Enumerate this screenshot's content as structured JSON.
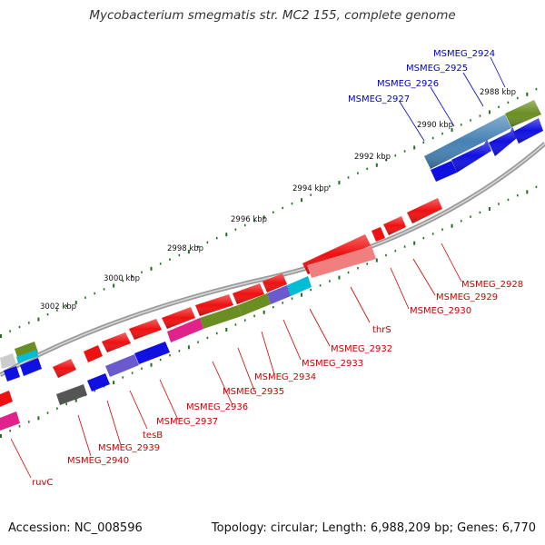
{
  "title": "Mycobacterium smegmatis str. MC2 155, complete genome",
  "footer": {
    "accession": "Accession: NC_008596",
    "stats": "Topology: circular; Length: 6,988,209 bp; Genes: 6,770"
  },
  "colors": {
    "forward_label": "#0000cc",
    "reverse_label": "#cc0000",
    "tick": "#207020",
    "backbone": "#888888"
  },
  "ruler_labels": [
    "2988 kbp",
    "2990 kbp",
    "2992 kbp",
    "2994 kbp",
    "2996 kbp",
    "2998 kbp",
    "3000 kbp",
    "3002 kbp"
  ],
  "forward_genes": [
    "MSMEG_2924",
    "MSMEG_2925",
    "MSMEG_2926",
    "MSMEG_2927"
  ],
  "reverse_genes": [
    "MSMEG_2928",
    "MSMEG_2929",
    "MSMEG_2930",
    "thrS",
    "MSMEG_2932",
    "MSMEG_2933",
    "MSMEG_2934",
    "MSMEG_2935",
    "MSMEG_2936",
    "MSMEG_2937",
    "tesB",
    "MSMEG_2939",
    "MSMEG_2940",
    "ruvC"
  ]
}
